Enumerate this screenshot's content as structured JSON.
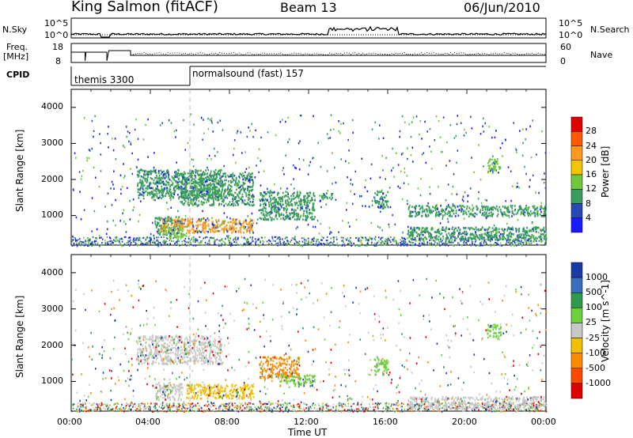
{
  "header": {
    "title": "King Salmon (fitACF)",
    "beam": "Beam 13",
    "date": "06/Jun/2010"
  },
  "top_panels": {
    "nsky_label": "N.Sky",
    "nsky_ticks": [
      "10^5",
      "10^0"
    ],
    "nsearch_label": "N.Search",
    "nsearch_ticks": [
      "10^5",
      "10^0"
    ],
    "freq_label_1": "Freq.",
    "freq_label_2": "[MHz]",
    "freq_ticks": [
      "18",
      "8"
    ],
    "nave_label": "Nave",
    "nave_ticks": [
      "60",
      "0"
    ],
    "cpid_label": "CPID",
    "cpid_segments": [
      {
        "name": "themis 3300"
      },
      {
        "name": "normalsound (fast) 157"
      }
    ]
  },
  "axes": {
    "ylabel": "Slant Range [km]",
    "yticks": [
      "4000",
      "3000",
      "2000",
      "1000"
    ],
    "xlabel": "Time UT",
    "xticks": [
      "00:00",
      "04:00",
      "08:00",
      "12:00",
      "16:00",
      "20:00",
      "00:00"
    ]
  },
  "power_colorbar": {
    "label": "Power [dB]",
    "ticks": [
      "28",
      "24",
      "20",
      "16",
      "12",
      "8",
      "4"
    ],
    "colors": [
      "#e00000",
      "#ff5a00",
      "#ff9a1e",
      "#f2c500",
      "#70c83c",
      "#3a9d5e",
      "#2848b8",
      "#1a1aff"
    ]
  },
  "velocity_colorbar": {
    "label": "Velocity [m s^-1]",
    "ticks": [
      "1000",
      "500",
      "100",
      "25",
      "-25",
      "-100",
      "-500",
      "-1000"
    ],
    "colors": [
      "#1a3aa8",
      "#3a6ec0",
      "#2e9a4a",
      "#6ccf3c",
      "#c8c8c8",
      "#f2c000",
      "#ff8a00",
      "#ff4a00",
      "#e00000"
    ]
  },
  "chart_data": {
    "type": "heatmap",
    "x_range_ut_hours": [
      0,
      24
    ],
    "y_range_km": [
      180,
      4500
    ],
    "power_regions": [
      {
        "t0": 3.3,
        "t1": 7.6,
        "r0": 1500,
        "r1": 2300,
        "level": 8
      },
      {
        "t0": 5.5,
        "t1": 9.2,
        "r0": 1300,
        "r1": 2200,
        "level": 8
      },
      {
        "t0": 4.2,
        "t1": 5.6,
        "r0": 500,
        "r1": 1000,
        "level": 8
      },
      {
        "t0": 4.5,
        "t1": 9.2,
        "r0": 550,
        "r1": 950,
        "level": 20
      },
      {
        "t0": 4.6,
        "t1": 5.8,
        "r0": 400,
        "r1": 700,
        "level": 12
      },
      {
        "t0": 9.5,
        "t1": 12.3,
        "r0": 900,
        "r1": 1700,
        "level": 8
      },
      {
        "t0": 12.5,
        "t1": 13.2,
        "r0": 1400,
        "r1": 1650,
        "level": 8
      },
      {
        "t0": 15.3,
        "t1": 16.0,
        "r0": 1200,
        "r1": 1700,
        "level": 8
      },
      {
        "t0": 17.0,
        "t1": 24.0,
        "r0": 1000,
        "r1": 1300,
        "level": 8
      },
      {
        "t0": 17.0,
        "t1": 24.0,
        "r0": 350,
        "r1": 700,
        "level": 8
      },
      {
        "t0": 21.0,
        "t1": 21.7,
        "r0": 2200,
        "r1": 2600,
        "level": 12
      }
    ],
    "velocity_regions": [
      {
        "t0": 3.3,
        "t1": 7.6,
        "r0": 1500,
        "r1": 2300,
        "level": 0
      },
      {
        "t0": 5.8,
        "t1": 9.2,
        "r0": 550,
        "r1": 950,
        "level": -100
      },
      {
        "t0": 4.2,
        "t1": 5.6,
        "r0": 500,
        "r1": 1000,
        "level": 0
      },
      {
        "t0": 9.5,
        "t1": 11.5,
        "r0": 1100,
        "r1": 1700,
        "level": -500
      },
      {
        "t0": 10.5,
        "t1": 12.3,
        "r0": 900,
        "r1": 1200,
        "level": 100
      },
      {
        "t0": 15.3,
        "t1": 16.0,
        "r0": 1200,
        "r1": 1700,
        "level": 100
      },
      {
        "t0": 17.0,
        "t1": 24.0,
        "r0": 250,
        "r1": 600,
        "level": 0
      },
      {
        "t0": 21.0,
        "t1": 21.7,
        "r0": 2200,
        "r1": 2600,
        "level": 100
      }
    ]
  }
}
